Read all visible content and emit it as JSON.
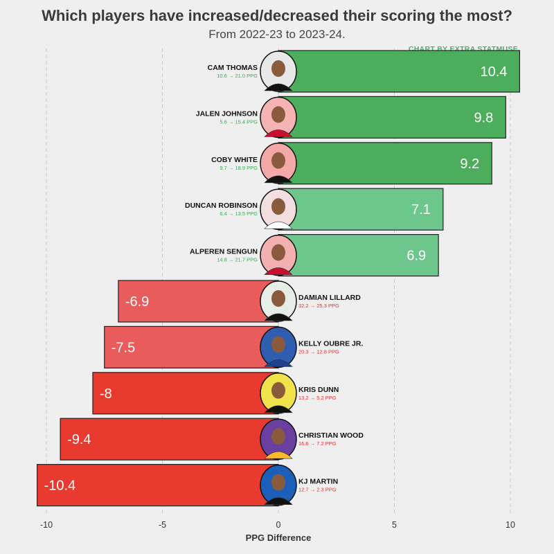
{
  "colors": {
    "positive_dark": "#4cae5c",
    "positive_light": "#6dc68b",
    "negative_light": "#e85c5c",
    "negative_dark": "#e83a2e",
    "name_text": "#111111",
    "pos_sub": "#3aa655",
    "neg_sub": "#e02e2e"
  },
  "chart_data": {
    "type": "bar",
    "orientation": "horizontal",
    "title": "Which players have increased/decreased their scoring the most?",
    "subtitle": "From 2022-23 to 2023-24.",
    "credit": "CHART BY EXTRA STATMUSE",
    "xlabel": "PPG Difference",
    "ylabel": "",
    "xlim": [
      -10.5,
      10.5
    ],
    "xticks": [
      -10,
      -5,
      0,
      5,
      10
    ],
    "xtick_labels": [
      "-10",
      "-5",
      "0",
      "5",
      "10"
    ],
    "grid": "vertical dashed",
    "categories": [
      "CAM THOMAS",
      "JALEN JOHNSON",
      "COBY WHITE",
      "DUNCAN ROBINSON",
      "ALPEREN SENGUN",
      "DAMIAN LILLARD",
      "KELLY OUBRE JR.",
      "KRIS DUNN",
      "CHRISTIAN WOOD",
      "KJ MARTIN"
    ],
    "values": [
      10.4,
      9.8,
      9.2,
      7.1,
      6.9,
      -6.9,
      -7.5,
      -8,
      -9.4,
      -10.4
    ],
    "value_labels": [
      "10.4",
      "9.8",
      "9.2",
      "7.1",
      "6.9",
      "-6.9",
      "-7.5",
      "-8",
      "-9.4",
      "-10.4"
    ],
    "ppg_labels": [
      "10.6 → 21.0 PPG",
      "5.6 → 15.4 PPG",
      "9.7 → 18.9 PPG",
      "6.4 → 13.5 PPG",
      "14.8 → 21.7 PPG",
      "32.2 → 25.3 PPG",
      "20.3 → 12.8 PPG",
      "13.2 → 5.2 PPG",
      "16.6 → 7.2 PPG",
      "12.7 → 2.3 PPG"
    ],
    "avatar_colors": [
      "#e8e8e8",
      "#f6b3b3",
      "#f4a8a8",
      "#f2dede",
      "#f2b0b0",
      "#e6ede6",
      "#2f5db0",
      "#f0e24a",
      "#6b3fa0",
      "#1c5fb8"
    ],
    "jersey_colors": [
      "#111111",
      "#c8102e",
      "#111111",
      "#ffffff",
      "#c8102e",
      "#111111",
      "#1d428a",
      "#111111",
      "#fdb927",
      "#111111"
    ]
  }
}
